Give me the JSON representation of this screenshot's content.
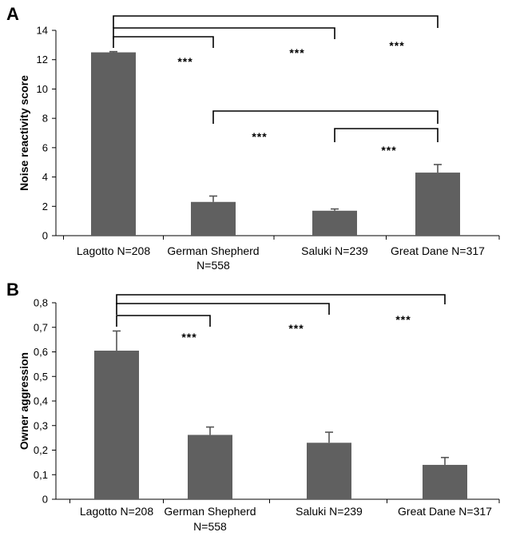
{
  "chart_data": [
    {
      "panel": "A",
      "type": "bar",
      "ylabel": "Noise reactivity score",
      "ylim": [
        0,
        14
      ],
      "yticks": [
        "0",
        "2",
        "4",
        "6",
        "8",
        "10",
        "12",
        "14"
      ],
      "categories": [
        [
          "Lagotto N=208"
        ],
        [
          "German Shepherd",
          "N=558"
        ],
        [
          "Saluki N=239"
        ],
        [
          "Great Dane N=317"
        ]
      ],
      "values": [
        12.5,
        2.3,
        1.7,
        4.3
      ],
      "errors": [
        0.05,
        0.4,
        0.12,
        0.55
      ],
      "bar_color": "#606060",
      "significance": [
        {
          "from": 0,
          "to": 1,
          "label": "***"
        },
        {
          "from": 0,
          "to": 2,
          "label": "***"
        },
        {
          "from": 0,
          "to": 3,
          "label": "***"
        },
        {
          "from": 1,
          "to": 3,
          "label": "***"
        },
        {
          "from": 2,
          "to": 3,
          "label": "***"
        }
      ]
    },
    {
      "panel": "B",
      "type": "bar",
      "ylabel": "Owner aggression",
      "ylim": [
        0,
        0.8
      ],
      "yticks": [
        "0",
        "0,1",
        "0,2",
        "0,3",
        "0,4",
        "0,5",
        "0,6",
        "0,7",
        "0,8"
      ],
      "categories": [
        [
          "Lagotto N=208"
        ],
        [
          "German Shepherd",
          "N=558"
        ],
        [
          "Saluki N=239"
        ],
        [
          "Great Dane N=317"
        ]
      ],
      "values": [
        0.605,
        0.262,
        0.23,
        0.14
      ],
      "errors": [
        0.08,
        0.032,
        0.043,
        0.03
      ],
      "bar_color": "#606060",
      "significance": [
        {
          "from": 0,
          "to": 1,
          "label": "***"
        },
        {
          "from": 0,
          "to": 2,
          "label": "***"
        },
        {
          "from": 0,
          "to": 3,
          "label": "***"
        }
      ]
    }
  ]
}
